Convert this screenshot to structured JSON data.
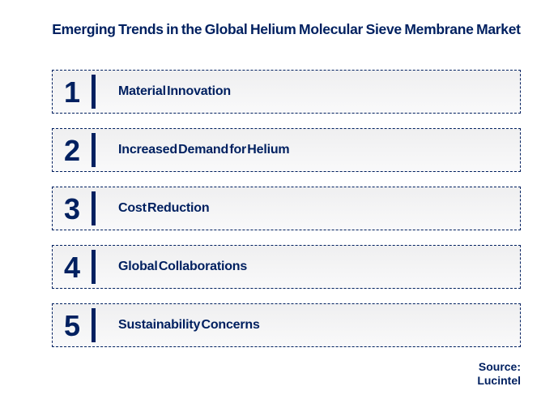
{
  "title": "Emerging Trends in the Global Helium Molecular Sieve Membrane Market",
  "trends": [
    {
      "number": "1",
      "label": "Material Innovation"
    },
    {
      "number": "2",
      "label": "Increased Demand for Helium"
    },
    {
      "number": "3",
      "label": "Cost Reduction"
    },
    {
      "number": "4",
      "label": "Global Collaborations"
    },
    {
      "number": "5",
      "label": "Sustainability Concerns"
    }
  ],
  "source": {
    "label": "Source:",
    "name": "Lucintel"
  },
  "colors": {
    "navy": "#002060",
    "row_background": "#f2f2f2",
    "page_background": "#ffffff"
  }
}
